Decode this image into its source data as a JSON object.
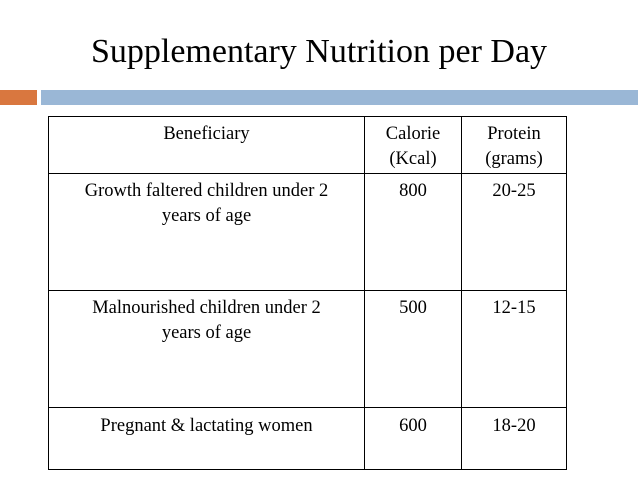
{
  "slide": {
    "title": "Supplementary Nutrition per Day"
  },
  "colors": {
    "accent_orange": "#d9773f",
    "accent_blue": "#9ab7d6"
  },
  "table": {
    "headers": {
      "beneficiary": "Beneficiary",
      "calorie_line1": "Calorie",
      "calorie_line2": "(Kcal)",
      "protein_line1": "Protein",
      "protein_line2": "(grams)"
    },
    "rows": [
      {
        "beneficiary_line1": "Growth faltered children under 2",
        "beneficiary_line2": "years of age",
        "calorie": "800",
        "protein": "20-25"
      },
      {
        "beneficiary_line1": "Malnourished children under 2",
        "beneficiary_line2": "years of age",
        "calorie": "500",
        "protein": "12-15"
      },
      {
        "beneficiary_line1": "Pregnant & lactating women",
        "calorie": "600",
        "protein": "18-20"
      }
    ]
  }
}
